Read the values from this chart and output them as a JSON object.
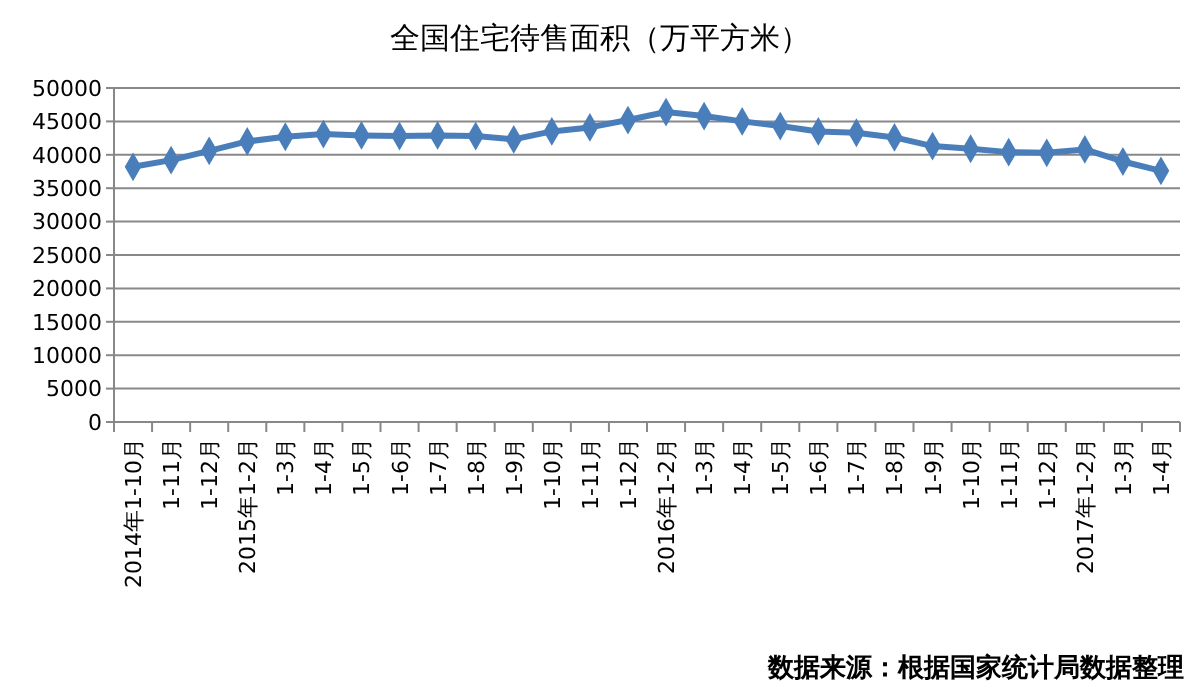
{
  "chart_data": {
    "type": "line",
    "title": "全国住宅待售面积（万平方米）",
    "categories": [
      "2014年1-10月",
      "1-11月",
      "1-12月",
      "2015年1-2月",
      "1-3月",
      "1-4月",
      "1-5月",
      "1-6月",
      "1-7月",
      "1-8月",
      "1-9月",
      "1-10月",
      "1-11月",
      "1-12月",
      "2016年1-2月",
      "1-3月",
      "1-4月",
      "1-5月",
      "1-6月",
      "1-7月",
      "1-8月",
      "1-9月",
      "1-10月",
      "1-11月",
      "1-12月",
      "2017年1-2月",
      "1-3月",
      "1-4月"
    ],
    "series": [
      {
        "color": "#4a7ebb",
        "values": [
          38200,
          39200,
          40600,
          42000,
          42700,
          43100,
          42900,
          42800,
          42900,
          42800,
          42300,
          43500,
          44100,
          45200,
          46400,
          45800,
          45000,
          44300,
          43500,
          43300,
          42600,
          41300,
          40900,
          40400,
          40300,
          40800,
          39000,
          37600
        ]
      }
    ],
    "ylim": [
      0,
      50000
    ],
    "yticks": [
      0,
      5000,
      10000,
      15000,
      20000,
      25000,
      30000,
      35000,
      40000,
      45000,
      50000
    ],
    "grid": "y",
    "marker": "diamond",
    "line_style": "solid",
    "annotations": [
      "数据来源：根据国家统计局数据整理"
    ]
  }
}
